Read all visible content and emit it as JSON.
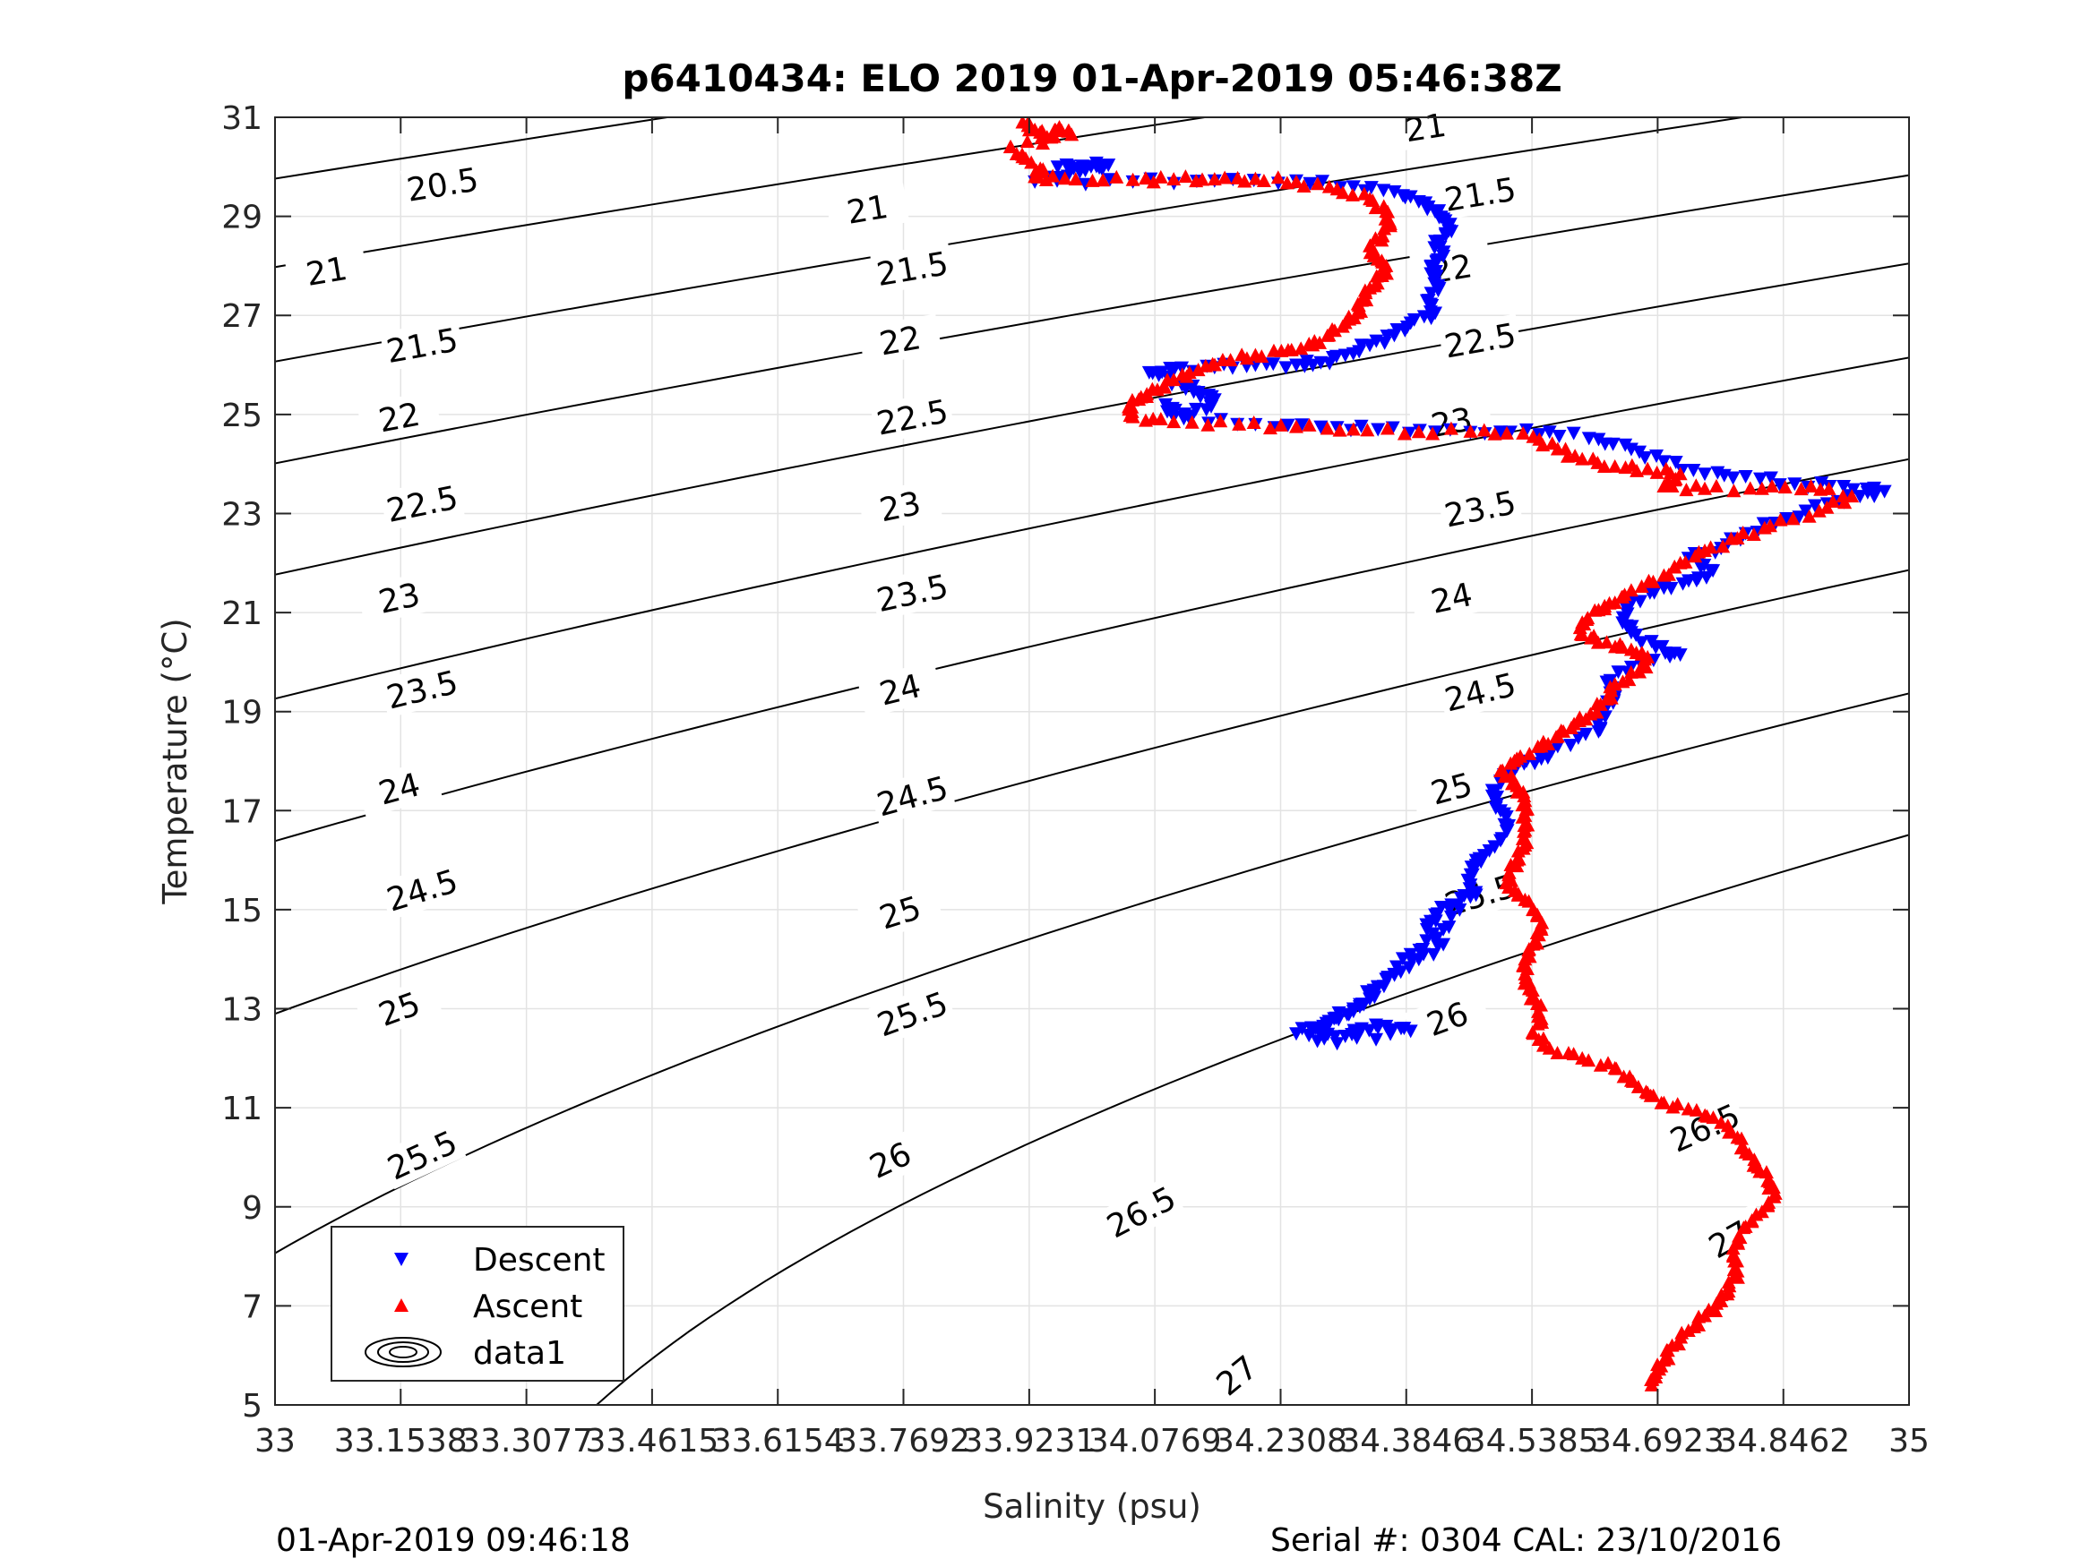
{
  "chart_data": {
    "type": "scatter",
    "title": "p6410434: ELO 2019 01-Apr-2019 05:46:38Z",
    "xlabel": "Salinity (psu)",
    "ylabel": "Temperature (°C)",
    "xlim": [
      33,
      35
    ],
    "ylim": [
      5,
      31
    ],
    "grid": true,
    "xticks": [
      33,
      33.1538,
      33.3077,
      33.4615,
      33.6154,
      33.7692,
      33.9231,
      34.0769,
      34.2308,
      34.3846,
      34.5385,
      34.6923,
      34.8462,
      35
    ],
    "xtick_labels": [
      "33",
      "33.1538",
      "33.3077",
      "33.4615",
      "33.6154",
      "33.7692",
      "33.9231",
      "34.0769",
      "34.2308",
      "34.3846",
      "34.5385",
      "34.6923",
      "34.8462",
      "35"
    ],
    "yticks": [
      5,
      7,
      9,
      11,
      13,
      15,
      17,
      19,
      21,
      23,
      25,
      27,
      29,
      31
    ],
    "ytick_labels": [
      "5",
      "7",
      "9",
      "11",
      "13",
      "15",
      "17",
      "19",
      "21",
      "23",
      "25",
      "27",
      "29",
      "31"
    ],
    "legend": {
      "placement": "bottom-left",
      "entries": [
        {
          "label": "Descent",
          "marker": "triangle-down",
          "color": "#0000ff"
        },
        {
          "label": "Ascent",
          "marker": "triangle-up",
          "color": "#ff0000"
        },
        {
          "label": "data1",
          "marker": "contour",
          "color": "#000000"
        }
      ]
    },
    "contours": {
      "levels": [
        20.5,
        21,
        21.5,
        22,
        22.5,
        23,
        23.5,
        24,
        24.5,
        25,
        25.5,
        26,
        26.5,
        27
      ],
      "labels": [
        {
          "text": "20.5",
          "x": 33.205,
          "y": 29.65
        },
        {
          "text": "21",
          "x": 33.063,
          "y": 27.9
        },
        {
          "text": "21.5",
          "x": 33.18,
          "y": 26.4
        },
        {
          "text": "22",
          "x": 33.152,
          "y": 24.95
        },
        {
          "text": "22.5",
          "x": 33.18,
          "y": 23.2
        },
        {
          "text": "23",
          "x": 33.152,
          "y": 21.3
        },
        {
          "text": "23.5",
          "x": 33.18,
          "y": 19.45
        },
        {
          "text": "24",
          "x": 33.152,
          "y": 17.45
        },
        {
          "text": "24.5",
          "x": 33.18,
          "y": 15.4
        },
        {
          "text": "25",
          "x": 33.152,
          "y": 13.0
        },
        {
          "text": "25.5",
          "x": 33.18,
          "y": 10.05
        },
        {
          "text": "26",
          "x": 33.148,
          "y": 6.7
        },
        {
          "text": "21",
          "x": 33.725,
          "y": 29.15
        },
        {
          "text": "21.5",
          "x": 33.78,
          "y": 27.95
        },
        {
          "text": "22",
          "x": 33.765,
          "y": 26.5
        },
        {
          "text": "22.5",
          "x": 33.78,
          "y": 24.95
        },
        {
          "text": "23",
          "x": 33.765,
          "y": 23.15
        },
        {
          "text": "23.5",
          "x": 33.78,
          "y": 21.4
        },
        {
          "text": "24",
          "x": 33.765,
          "y": 19.45
        },
        {
          "text": "24.5",
          "x": 33.78,
          "y": 17.3
        },
        {
          "text": "25",
          "x": 33.765,
          "y": 14.95
        },
        {
          "text": "25.5",
          "x": 33.78,
          "y": 12.9
        },
        {
          "text": "26",
          "x": 33.753,
          "y": 9.95
        },
        {
          "text": "26.5",
          "x": 34.06,
          "y": 8.9
        },
        {
          "text": "27",
          "x": 34.177,
          "y": 5.6
        },
        {
          "text": "21",
          "x": 34.408,
          "y": 30.8
        },
        {
          "text": "21.5",
          "x": 34.475,
          "y": 29.45
        },
        {
          "text": "22",
          "x": 34.44,
          "y": 27.95
        },
        {
          "text": "22.5",
          "x": 34.475,
          "y": 26.5
        },
        {
          "text": "23",
          "x": 34.44,
          "y": 24.85
        },
        {
          "text": "23.5",
          "x": 34.475,
          "y": 23.1
        },
        {
          "text": "24",
          "x": 34.44,
          "y": 21.3
        },
        {
          "text": "24.5",
          "x": 34.475,
          "y": 19.4
        },
        {
          "text": "25",
          "x": 34.44,
          "y": 17.45
        },
        {
          "text": "25.5",
          "x": 34.475,
          "y": 15.3
        },
        {
          "text": "26",
          "x": 34.435,
          "y": 12.8
        },
        {
          "text": "26.5",
          "x": 34.75,
          "y": 10.6
        },
        {
          "text": "27",
          "x": 34.78,
          "y": 8.35
        }
      ]
    },
    "series": [
      {
        "name": "Descent",
        "marker": "triangle-down",
        "color": "#0000ff",
        "points": [
          [
            33.958,
            30.0
          ],
          [
            33.988,
            30.02
          ],
          [
            34.02,
            30.04
          ],
          [
            33.985,
            29.9
          ],
          [
            33.93,
            29.7
          ],
          [
            34.05,
            29.7
          ],
          [
            34.15,
            29.72
          ],
          [
            34.25,
            29.72
          ],
          [
            34.32,
            29.6
          ],
          [
            34.37,
            29.5
          ],
          [
            34.4,
            29.3
          ],
          [
            34.42,
            29.1
          ],
          [
            34.43,
            28.95
          ],
          [
            34.44,
            28.7
          ],
          [
            34.42,
            28.5
          ],
          [
            34.43,
            28.2
          ],
          [
            34.415,
            28.0
          ],
          [
            34.42,
            27.8
          ],
          [
            34.425,
            27.55
          ],
          [
            34.41,
            27.3
          ],
          [
            34.42,
            27.05
          ],
          [
            34.39,
            26.85
          ],
          [
            34.37,
            26.6
          ],
          [
            34.34,
            26.4
          ],
          [
            34.31,
            26.2
          ],
          [
            34.28,
            26.05
          ],
          [
            34.25,
            26.0
          ],
          [
            34.2,
            26.0
          ],
          [
            34.15,
            25.95
          ],
          [
            34.1,
            25.9
          ],
          [
            34.07,
            25.85
          ],
          [
            34.11,
            25.6
          ],
          [
            34.13,
            25.45
          ],
          [
            34.15,
            25.3
          ],
          [
            34.14,
            25.1
          ],
          [
            34.1,
            24.95
          ],
          [
            34.09,
            25.2
          ],
          [
            34.12,
            24.9
          ],
          [
            34.2,
            24.8
          ],
          [
            34.28,
            24.75
          ],
          [
            34.35,
            24.7
          ],
          [
            34.42,
            24.65
          ],
          [
            34.5,
            24.65
          ],
          [
            34.56,
            24.65
          ],
          [
            34.62,
            24.5
          ],
          [
            34.66,
            24.3
          ],
          [
            34.7,
            24.05
          ],
          [
            34.75,
            23.8
          ],
          [
            34.8,
            23.75
          ],
          [
            34.86,
            23.6
          ],
          [
            34.92,
            23.55
          ],
          [
            34.97,
            23.45
          ],
          [
            34.94,
            23.35
          ],
          [
            34.9,
            23.2
          ],
          [
            34.85,
            22.9
          ],
          [
            34.8,
            22.6
          ],
          [
            34.77,
            22.3
          ],
          [
            34.73,
            22.1
          ],
          [
            34.76,
            21.85
          ],
          [
            34.74,
            21.65
          ],
          [
            34.7,
            21.5
          ],
          [
            34.66,
            21.2
          ],
          [
            34.65,
            20.9
          ],
          [
            34.66,
            20.6
          ],
          [
            34.69,
            20.3
          ],
          [
            34.72,
            20.15
          ],
          [
            34.66,
            19.9
          ],
          [
            34.63,
            19.6
          ],
          [
            34.64,
            19.3
          ],
          [
            34.63,
            19.1
          ],
          [
            34.62,
            18.8
          ],
          [
            34.62,
            18.6
          ],
          [
            34.57,
            18.3
          ],
          [
            34.55,
            18.05
          ],
          [
            34.52,
            17.9
          ],
          [
            34.5,
            17.6
          ],
          [
            34.49,
            17.3
          ],
          [
            34.5,
            17.0
          ],
          [
            34.51,
            16.7
          ],
          [
            34.5,
            16.4
          ],
          [
            34.48,
            16.1
          ],
          [
            34.47,
            15.9
          ],
          [
            34.46,
            15.6
          ],
          [
            34.47,
            15.3
          ],
          [
            34.44,
            15.1
          ],
          [
            34.42,
            14.9
          ],
          [
            34.41,
            14.6
          ],
          [
            34.43,
            14.3
          ],
          [
            34.4,
            14.0
          ],
          [
            34.37,
            13.7
          ],
          [
            34.35,
            13.45
          ],
          [
            34.34,
            13.2
          ],
          [
            34.32,
            12.95
          ],
          [
            34.29,
            12.7
          ],
          [
            34.27,
            12.55
          ],
          [
            34.31,
            12.45
          ],
          [
            34.33,
            12.6
          ],
          [
            34.36,
            12.65
          ],
          [
            34.39,
            12.55
          ],
          [
            34.3,
            12.3
          ],
          [
            34.25,
            12.5
          ],
          [
            34.29,
            12.75
          ],
          [
            34.32,
            13.0
          ],
          [
            34.36,
            13.6
          ],
          [
            34.39,
            14.1
          ],
          [
            34.42,
            14.4
          ],
          [
            34.45,
            15.0
          ],
          [
            34.47,
            16.0
          ]
        ]
      },
      {
        "name": "Ascent",
        "marker": "triangle-up",
        "color": "#ff0000",
        "points": [
          [
            33.915,
            30.9
          ],
          [
            33.93,
            30.75
          ],
          [
            33.945,
            30.6
          ],
          [
            33.96,
            30.8
          ],
          [
            33.975,
            30.65
          ],
          [
            33.9,
            30.4
          ],
          [
            33.915,
            30.2
          ],
          [
            33.94,
            29.95
          ],
          [
            33.93,
            29.8
          ],
          [
            33.98,
            29.75
          ],
          [
            34.05,
            29.74
          ],
          [
            34.1,
            29.75
          ],
          [
            34.15,
            29.75
          ],
          [
            34.2,
            29.76
          ],
          [
            34.25,
            29.7
          ],
          [
            34.3,
            29.55
          ],
          [
            34.34,
            29.35
          ],
          [
            34.36,
            29.1
          ],
          [
            34.365,
            28.85
          ],
          [
            34.355,
            28.6
          ],
          [
            34.34,
            28.4
          ],
          [
            34.345,
            28.2
          ],
          [
            34.36,
            28.0
          ],
          [
            34.355,
            27.8
          ],
          [
            34.34,
            27.55
          ],
          [
            34.33,
            27.3
          ],
          [
            34.325,
            27.05
          ],
          [
            34.31,
            26.85
          ],
          [
            34.29,
            26.6
          ],
          [
            34.27,
            26.4
          ],
          [
            34.24,
            26.3
          ],
          [
            34.2,
            26.2
          ],
          [
            34.16,
            26.1
          ],
          [
            34.13,
            25.9
          ],
          [
            34.1,
            25.7
          ],
          [
            34.08,
            25.5
          ],
          [
            34.06,
            25.35
          ],
          [
            34.045,
            25.15
          ],
          [
            34.05,
            24.95
          ],
          [
            34.1,
            24.85
          ],
          [
            34.18,
            24.8
          ],
          [
            34.25,
            24.75
          ],
          [
            34.32,
            24.7
          ],
          [
            34.4,
            24.65
          ],
          [
            34.48,
            24.68
          ],
          [
            34.54,
            24.55
          ],
          [
            34.57,
            24.3
          ],
          [
            34.6,
            24.1
          ],
          [
            34.64,
            23.95
          ],
          [
            34.68,
            23.9
          ],
          [
            34.72,
            23.8
          ],
          [
            34.7,
            23.55
          ],
          [
            34.75,
            23.5
          ],
          [
            34.82,
            23.5
          ],
          [
            34.88,
            23.55
          ],
          [
            34.93,
            23.35
          ],
          [
            34.89,
            23.05
          ],
          [
            34.83,
            22.75
          ],
          [
            34.79,
            22.5
          ],
          [
            34.75,
            22.25
          ],
          [
            34.72,
            22.0
          ],
          [
            34.7,
            21.75
          ],
          [
            34.66,
            21.45
          ],
          [
            34.64,
            21.2
          ],
          [
            34.62,
            21.05
          ],
          [
            34.6,
            20.8
          ],
          [
            34.6,
            20.55
          ],
          [
            34.63,
            20.4
          ],
          [
            34.66,
            20.25
          ],
          [
            34.68,
            20.1
          ],
          [
            34.67,
            19.8
          ],
          [
            34.64,
            19.55
          ],
          [
            34.63,
            19.25
          ],
          [
            34.61,
            18.95
          ],
          [
            34.59,
            18.75
          ],
          [
            34.57,
            18.5
          ],
          [
            34.55,
            18.3
          ],
          [
            34.52,
            18.05
          ],
          [
            34.5,
            17.8
          ],
          [
            34.52,
            17.5
          ],
          [
            34.53,
            17.2
          ],
          [
            34.53,
            16.9
          ],
          [
            34.53,
            16.6
          ],
          [
            34.53,
            16.3
          ],
          [
            34.52,
            16.0
          ],
          [
            34.51,
            15.7
          ],
          [
            34.51,
            15.45
          ],
          [
            34.53,
            15.2
          ],
          [
            34.545,
            14.9
          ],
          [
            34.55,
            14.6
          ],
          [
            34.54,
            14.3
          ],
          [
            34.53,
            14.0
          ],
          [
            34.53,
            13.7
          ],
          [
            34.535,
            13.4
          ],
          [
            34.545,
            13.1
          ],
          [
            34.55,
            12.8
          ],
          [
            34.54,
            12.5
          ],
          [
            34.56,
            12.2
          ],
          [
            34.6,
            12.0
          ],
          [
            34.64,
            11.8
          ],
          [
            34.66,
            11.55
          ],
          [
            34.68,
            11.3
          ],
          [
            34.7,
            11.1
          ],
          [
            34.74,
            10.95
          ],
          [
            34.77,
            10.7
          ],
          [
            34.79,
            10.4
          ],
          [
            34.8,
            10.1
          ],
          [
            34.815,
            9.8
          ],
          [
            34.83,
            9.5
          ],
          [
            34.835,
            9.2
          ],
          [
            34.82,
            8.9
          ],
          [
            34.8,
            8.6
          ],
          [
            34.79,
            8.3
          ],
          [
            34.785,
            8.0
          ],
          [
            34.79,
            7.7
          ],
          [
            34.78,
            7.4
          ],
          [
            34.77,
            7.1
          ],
          [
            34.75,
            6.8
          ],
          [
            34.73,
            6.5
          ],
          [
            34.71,
            6.2
          ],
          [
            34.7,
            5.9
          ],
          [
            34.69,
            5.65
          ],
          [
            34.685,
            5.4
          ]
        ]
      }
    ]
  },
  "footer": {
    "left": "01-Apr-2019 09:46:18",
    "right": "Serial #: 0304  CAL: 23/10/2016"
  }
}
